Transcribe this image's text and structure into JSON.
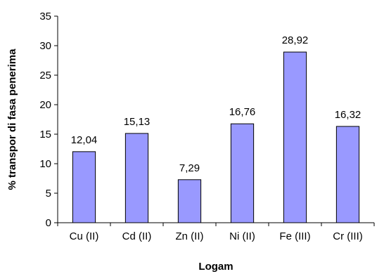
{
  "chart_data": {
    "type": "bar",
    "title": "",
    "xlabel": "Logam",
    "ylabel": "% transpor di fasa penerima",
    "categories": [
      "Cu (II)",
      "Cd (II)",
      "Zn (II)",
      "Ni (II)",
      "Fe (III)",
      "Cr (III)"
    ],
    "series": [
      {
        "values": [
          12.04,
          15.13,
          7.29,
          16.76,
          28.92,
          16.32
        ],
        "data_labels": [
          "12,04",
          "15,13",
          "7,29",
          "16,76",
          "28,92",
          "16,32"
        ],
        "color": "#9999ff"
      }
    ],
    "ylim": [
      0,
      35
    ],
    "yticks": [
      0,
      5,
      10,
      15,
      20,
      25,
      30,
      35
    ],
    "grid": false,
    "legend": "none"
  }
}
